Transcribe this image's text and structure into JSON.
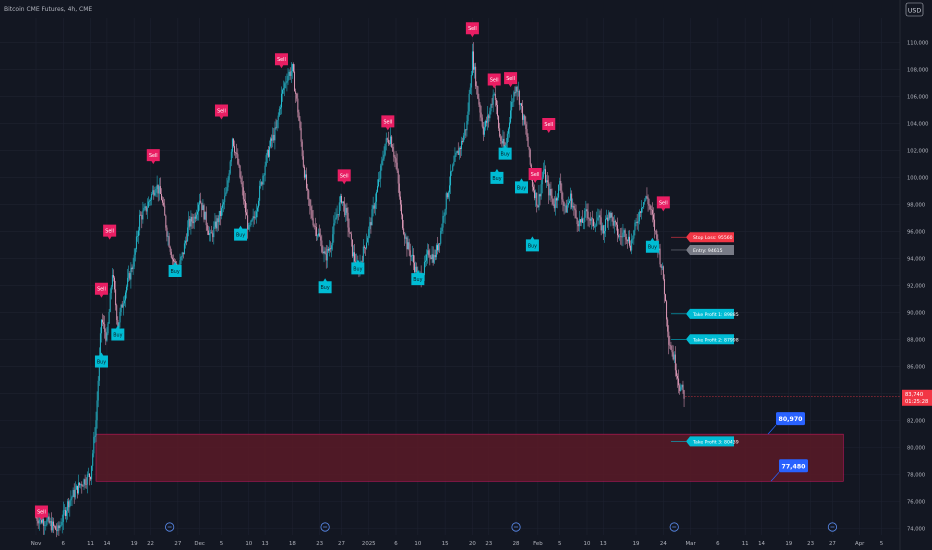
{
  "header": {
    "title": "Bitcoin CME Futures, 4h, CME",
    "currency": "USD"
  },
  "colors": {
    "background": "#131722",
    "grid": "#1e2230",
    "axis_text": "#b2b5be",
    "up": "#26c6da",
    "down": "#e8a0bf",
    "sell": "#e91e63",
    "buy": "#00bcd4",
    "zone_fill": "#5a1a27",
    "zone_border": "#c2185b",
    "price_tag": "#f23645",
    "label_blue": "#2962ff"
  },
  "chart_data": {
    "type": "candlestick",
    "title": "Bitcoin CME Futures, 4h, CME",
    "ylim": [
      73500,
      111800
    ],
    "y_ticks": [
      74000,
      76000,
      78000,
      80000,
      82000,
      84000,
      86000,
      88000,
      90000,
      92000,
      94000,
      96000,
      98000,
      100000,
      102000,
      104000,
      106000,
      108000,
      110000
    ],
    "y_tick_labels": [
      "74,000",
      "76,000",
      "78,000",
      "80,000",
      "82,000",
      "84,000",
      "86,000",
      "88,000",
      "90,000",
      "92,000",
      "94,000",
      "96,000",
      "98,000",
      "100,000",
      "102,000",
      "104,000",
      "106,000",
      "108,000",
      "110,000"
    ],
    "x_ticks": [
      {
        "label": "Nov",
        "day": 0
      },
      {
        "label": "6",
        "day": 5
      },
      {
        "label": "11",
        "day": 10
      },
      {
        "label": "14",
        "day": 13
      },
      {
        "label": "19",
        "day": 18
      },
      {
        "label": "22",
        "day": 21
      },
      {
        "label": "27",
        "day": 26
      },
      {
        "label": "Dec",
        "day": 30
      },
      {
        "label": "5",
        "day": 34
      },
      {
        "label": "10",
        "day": 39
      },
      {
        "label": "13",
        "day": 42
      },
      {
        "label": "18",
        "day": 47
      },
      {
        "label": "23",
        "day": 52
      },
      {
        "label": "27",
        "day": 56
      },
      {
        "label": "2025",
        "day": 61
      },
      {
        "label": "6",
        "day": 66
      },
      {
        "label": "10",
        "day": 70
      },
      {
        "label": "15",
        "day": 75
      },
      {
        "label": "20",
        "day": 80
      },
      {
        "label": "23",
        "day": 83
      },
      {
        "label": "28",
        "day": 88
      },
      {
        "label": "Feb",
        "day": 92
      },
      {
        "label": "5",
        "day": 96
      },
      {
        "label": "10",
        "day": 101
      },
      {
        "label": "13",
        "day": 104
      },
      {
        "label": "19",
        "day": 110
      },
      {
        "label": "24",
        "day": 115
      },
      {
        "label": "Mar",
        "day": 120
      },
      {
        "label": "6",
        "day": 125
      },
      {
        "label": "11",
        "day": 130
      },
      {
        "label": "14",
        "day": 133
      },
      {
        "label": "19",
        "day": 138
      },
      {
        "label": "23",
        "day": 142
      },
      {
        "label": "27",
        "day": 146
      },
      {
        "label": "Apr",
        "day": 151
      },
      {
        "label": "5",
        "day": 155
      }
    ],
    "price_path": [
      {
        "day": 0,
        "price": 74800
      },
      {
        "day": 2,
        "price": 74500
      },
      {
        "day": 4,
        "price": 73800
      },
      {
        "day": 6,
        "price": 76000
      },
      {
        "day": 8,
        "price": 77200
      },
      {
        "day": 10,
        "price": 78000
      },
      {
        "day": 11,
        "price": 82000
      },
      {
        "day": 12,
        "price": 89500
      },
      {
        "day": 13,
        "price": 88000
      },
      {
        "day": 14,
        "price": 93000
      },
      {
        "day": 15,
        "price": 89000
      },
      {
        "day": 16,
        "price": 91000
      },
      {
        "day": 17,
        "price": 92500
      },
      {
        "day": 18,
        "price": 94000
      },
      {
        "day": 19,
        "price": 97000
      },
      {
        "day": 20,
        "price": 97500
      },
      {
        "day": 21,
        "price": 98500
      },
      {
        "day": 22,
        "price": 99500
      },
      {
        "day": 23,
        "price": 98500
      },
      {
        "day": 24,
        "price": 96000
      },
      {
        "day": 25,
        "price": 94000
      },
      {
        "day": 26,
        "price": 93000
      },
      {
        "day": 27,
        "price": 94500
      },
      {
        "day": 28,
        "price": 96500
      },
      {
        "day": 29,
        "price": 97000
      },
      {
        "day": 30,
        "price": 98500
      },
      {
        "day": 31,
        "price": 97000
      },
      {
        "day": 32,
        "price": 95500
      },
      {
        "day": 33,
        "price": 96500
      },
      {
        "day": 34,
        "price": 97500
      },
      {
        "day": 35,
        "price": 99000
      },
      {
        "day": 36,
        "price": 103000
      },
      {
        "day": 37,
        "price": 101000
      },
      {
        "day": 38,
        "price": 98500
      },
      {
        "day": 39,
        "price": 96000
      },
      {
        "day": 40,
        "price": 97000
      },
      {
        "day": 41,
        "price": 99000
      },
      {
        "day": 42,
        "price": 101000
      },
      {
        "day": 43,
        "price": 102500
      },
      {
        "day": 44,
        "price": 103500
      },
      {
        "day": 45,
        "price": 106000
      },
      {
        "day": 46,
        "price": 107500
      },
      {
        "day": 47,
        "price": 108000
      },
      {
        "day": 48,
        "price": 105000
      },
      {
        "day": 49,
        "price": 101000
      },
      {
        "day": 50,
        "price": 98000
      },
      {
        "day": 51,
        "price": 96500
      },
      {
        "day": 52,
        "price": 95500
      },
      {
        "day": 53,
        "price": 94000
      },
      {
        "day": 54,
        "price": 95000
      },
      {
        "day": 55,
        "price": 97000
      },
      {
        "day": 56,
        "price": 98500
      },
      {
        "day": 57,
        "price": 97000
      },
      {
        "day": 58,
        "price": 94500
      },
      {
        "day": 59,
        "price": 93000
      },
      {
        "day": 60,
        "price": 94500
      },
      {
        "day": 61,
        "price": 96000
      },
      {
        "day": 62,
        "price": 98000
      },
      {
        "day": 63,
        "price": 100000
      },
      {
        "day": 64,
        "price": 102500
      },
      {
        "day": 65,
        "price": 103000
      },
      {
        "day": 66,
        "price": 101000
      },
      {
        "day": 67,
        "price": 97000
      },
      {
        "day": 68,
        "price": 95000
      },
      {
        "day": 69,
        "price": 94000
      },
      {
        "day": 70,
        "price": 92500
      },
      {
        "day": 71,
        "price": 93000
      },
      {
        "day": 72,
        "price": 94500
      },
      {
        "day": 73,
        "price": 94000
      },
      {
        "day": 74,
        "price": 95500
      },
      {
        "day": 75,
        "price": 98000
      },
      {
        "day": 76,
        "price": 100000
      },
      {
        "day": 77,
        "price": 101500
      },
      {
        "day": 78,
        "price": 102500
      },
      {
        "day": 79,
        "price": 104000
      },
      {
        "day": 80,
        "price": 109000
      },
      {
        "day": 81,
        "price": 106000
      },
      {
        "day": 82,
        "price": 103500
      },
      {
        "day": 83,
        "price": 104500
      },
      {
        "day": 84,
        "price": 106500
      },
      {
        "day": 85,
        "price": 103000
      },
      {
        "day": 86,
        "price": 102000
      },
      {
        "day": 87,
        "price": 105000
      },
      {
        "day": 88,
        "price": 107000
      },
      {
        "day": 89,
        "price": 105000
      },
      {
        "day": 90,
        "price": 103000
      },
      {
        "day": 91,
        "price": 99500
      },
      {
        "day": 92,
        "price": 98000
      },
      {
        "day": 93,
        "price": 100500
      },
      {
        "day": 94,
        "price": 99000
      },
      {
        "day": 95,
        "price": 98000
      },
      {
        "day": 96,
        "price": 99500
      },
      {
        "day": 97,
        "price": 97500
      },
      {
        "day": 98,
        "price": 98500
      },
      {
        "day": 99,
        "price": 97000
      },
      {
        "day": 100,
        "price": 96500
      },
      {
        "day": 101,
        "price": 97500
      },
      {
        "day": 102,
        "price": 96500
      },
      {
        "day": 103,
        "price": 97000
      },
      {
        "day": 104,
        "price": 96000
      },
      {
        "day": 105,
        "price": 97500
      },
      {
        "day": 106,
        "price": 96500
      },
      {
        "day": 107,
        "price": 95500
      },
      {
        "day": 108,
        "price": 96000
      },
      {
        "day": 109,
        "price": 95000
      },
      {
        "day": 110,
        "price": 96500
      },
      {
        "day": 111,
        "price": 98000
      },
      {
        "day": 112,
        "price": 98500
      },
      {
        "day": 113,
        "price": 97000
      },
      {
        "day": 114,
        "price": 95000
      },
      {
        "day": 115,
        "price": 92500
      },
      {
        "day": 116,
        "price": 88000
      },
      {
        "day": 117,
        "price": 86500
      },
      {
        "day": 118,
        "price": 84500
      },
      {
        "day": 119,
        "price": 83740
      }
    ],
    "signals": [
      {
        "type": "Sell",
        "day": 1,
        "price": 74800
      },
      {
        "type": "Sell",
        "day": 12,
        "price": 91300
      },
      {
        "type": "Sell",
        "day": 13.5,
        "price": 95600
      },
      {
        "type": "Buy",
        "day": 12,
        "price": 86800
      },
      {
        "type": "Buy",
        "day": 15,
        "price": 88800
      },
      {
        "type": "Sell",
        "day": 21.5,
        "price": 101200
      },
      {
        "type": "Buy",
        "day": 25.5,
        "price": 93500
      },
      {
        "type": "Sell",
        "day": 34,
        "price": 104500
      },
      {
        "type": "Buy",
        "day": 37.5,
        "price": 96200
      },
      {
        "type": "Sell",
        "day": 45,
        "price": 108300
      },
      {
        "type": "Buy",
        "day": 53,
        "price": 92300
      },
      {
        "type": "Sell",
        "day": 56.5,
        "price": 99700
      },
      {
        "type": "Buy",
        "day": 59,
        "price": 93700
      },
      {
        "type": "Sell",
        "day": 64.5,
        "price": 103700
      },
      {
        "type": "Buy",
        "day": 70,
        "price": 92900
      },
      {
        "type": "Sell",
        "day": 80,
        "price": 110600
      },
      {
        "type": "Sell",
        "day": 84,
        "price": 106800
      },
      {
        "type": "Sell",
        "day": 87,
        "price": 106900
      },
      {
        "type": "Buy",
        "day": 84.5,
        "price": 100400
      },
      {
        "type": "Buy",
        "day": 86,
        "price": 102200
      },
      {
        "type": "Buy",
        "day": 89,
        "price": 99700
      },
      {
        "type": "Sell",
        "day": 91.5,
        "price": 99800
      },
      {
        "type": "Sell",
        "day": 94,
        "price": 103500
      },
      {
        "type": "Buy",
        "day": 91,
        "price": 95400
      },
      {
        "type": "Buy",
        "day": 113,
        "price": 95300
      },
      {
        "type": "Sell",
        "day": 115,
        "price": 97700
      }
    ],
    "trade_levels": [
      {
        "label": "Stop Loss: 95560",
        "price": 95560,
        "color": "#f23645"
      },
      {
        "label": "Entry: 94615",
        "price": 94615,
        "color": "#787b86"
      },
      {
        "label": "Take Profit 1: 89885",
        "price": 89885,
        "color": "#00bcd4"
      },
      {
        "label": "Take Profit 2: 87998",
        "price": 87998,
        "color": "#00bcd4"
      },
      {
        "label": "Take Profit 3: 80439",
        "price": 80439,
        "color": "#00bcd4"
      }
    ],
    "zone": {
      "top": 80970,
      "bottom": 77480,
      "day_start": 11,
      "day_end": 148
    },
    "zone_labels": [
      {
        "label": "80,970",
        "price": 80970
      },
      {
        "label": "77,480",
        "price": 77480
      }
    ],
    "current_price": {
      "label": "83,740",
      "countdown": "01:25:28",
      "price": 83740
    }
  }
}
